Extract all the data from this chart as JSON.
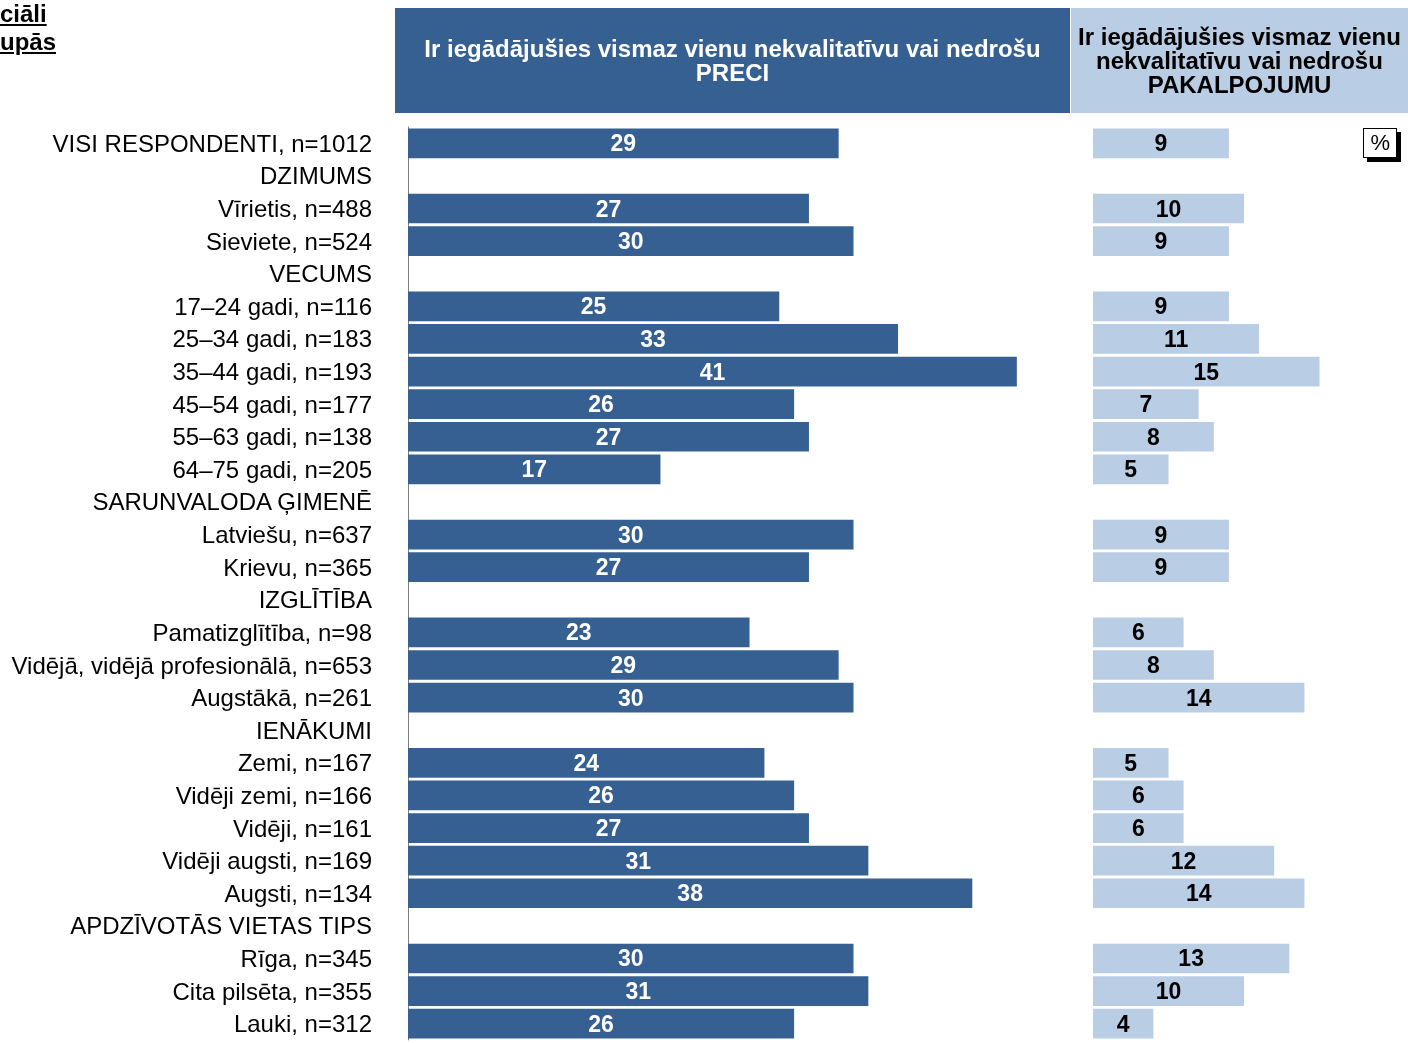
{
  "chart_data": [
    {
      "type": "bar",
      "orientation": "horizontal",
      "title": "Ir iegādājušies vismaz vienu nekvalitatīvu vai nedrošu PRECI",
      "annotations": [
        "ciāli",
        "upās"
      ],
      "categories": [
        "VISI RESPONDENTI, n=1012",
        "DZIMUMS",
        "Vīrietis, n=488",
        "Sieviete, n=524",
        "VECUMS",
        "17–24 gadi, n=116",
        "25–34 gadi, n=183",
        "35–44 gadi, n=193",
        "45–54 gadi, n=177",
        "55–63 gadi, n=138",
        "64–75 gadi, n=205",
        "SARUNVALODA ĢIMENĒ",
        "Latviešu, n=637",
        "Krievu, n=365",
        "IZGLĪTĪBA",
        "Pamatizglītība, n=98",
        "Vidējā, vidējā profesionālā, n=653",
        "Augstākā, n=261",
        "IENĀKUMI",
        "Zemi, n=167",
        "Vidēji zemi, n=166",
        "Vidēji, n=161",
        "Vidēji augsti, n=169",
        "Augsti, n=134",
        "APDZĪVOTĀS VIETAS TIPS",
        "Rīga, n=345",
        "Cita pilsēta, n=355",
        "Lauki, n=312"
      ],
      "values": [
        29,
        null,
        27,
        30,
        null,
        25,
        33,
        41,
        26,
        27,
        17,
        null,
        30,
        27,
        null,
        23,
        29,
        30,
        null,
        24,
        26,
        27,
        31,
        38,
        null,
        30,
        31,
        26
      ],
      "color": "#376092",
      "data_labels": true,
      "tick_labels": "y"
    },
    {
      "type": "bar",
      "orientation": "horizontal",
      "title": "Ir iegādājušies vismaz vienu nekvalitatīvu vai nedrošu PAKALPOJUMU",
      "annotations": [
        "%"
      ],
      "categories": [
        null,
        null,
        null,
        null,
        null,
        null,
        null,
        null,
        null,
        null,
        null,
        null,
        null,
        null,
        null,
        null,
        null,
        null,
        null,
        null,
        null,
        null,
        null,
        null,
        null,
        null,
        null,
        null
      ],
      "values": [
        9,
        null,
        10,
        9,
        null,
        9,
        11,
        15,
        7,
        8,
        5,
        null,
        9,
        9,
        null,
        6,
        8,
        14,
        null,
        5,
        6,
        6,
        12,
        14,
        null,
        13,
        10,
        4
      ],
      "color": "#b9cde5",
      "data_labels": true,
      "tick_labels": false
    }
  ]
}
